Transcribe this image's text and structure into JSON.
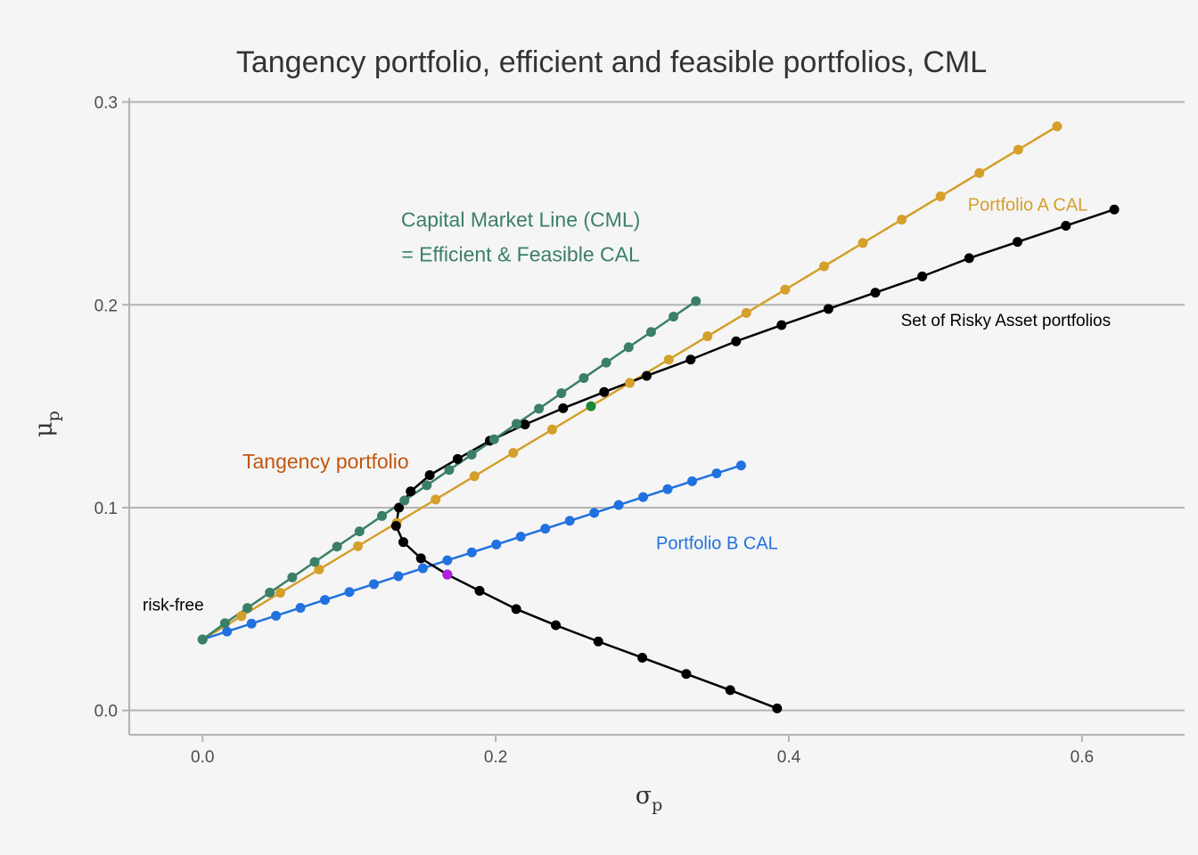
{
  "chart_data": {
    "type": "scatter",
    "title": "Tangency portfolio, efficient and feasible portfolios, CML",
    "xlabel": "σ",
    "xlabel_sub": "p",
    "ylabel": "μ",
    "ylabel_sub": "p",
    "xlim": [
      -0.05,
      0.67
    ],
    "ylim": [
      -0.012,
      0.302
    ],
    "x_ticks": [
      {
        "value": 0.0,
        "label": "0.0"
      },
      {
        "value": 0.2,
        "label": "0.2"
      },
      {
        "value": 0.4,
        "label": "0.4"
      },
      {
        "value": 0.6,
        "label": "0.6"
      }
    ],
    "y_ticks": [
      {
        "value": 0.0,
        "label": "0.0"
      },
      {
        "value": 0.1,
        "label": "0.1"
      },
      {
        "value": 0.2,
        "label": "0.2"
      },
      {
        "value": 0.3,
        "label": "0.3"
      }
    ],
    "grid": "horizontal",
    "series": [
      {
        "key": "portfolio_a_cal",
        "color": "#d4a02a",
        "points": [
          [
            0.0,
            0.035
          ],
          [
            0.0265,
            0.0465
          ],
          [
            0.053,
            0.058
          ],
          [
            0.0795,
            0.0695
          ],
          [
            0.106,
            0.081
          ],
          [
            0.1325,
            0.0925
          ],
          [
            0.159,
            0.104
          ],
          [
            0.1855,
            0.1155
          ],
          [
            0.212,
            0.127
          ],
          [
            0.2385,
            0.1385
          ],
          [
            0.265,
            0.15
          ],
          [
            0.2915,
            0.1615
          ],
          [
            0.318,
            0.173
          ],
          [
            0.3445,
            0.1845
          ],
          [
            0.371,
            0.196
          ],
          [
            0.3975,
            0.2075
          ],
          [
            0.424,
            0.219
          ],
          [
            0.4505,
            0.2305
          ],
          [
            0.477,
            0.242
          ],
          [
            0.5035,
            0.2535
          ],
          [
            0.53,
            0.265
          ],
          [
            0.5565,
            0.2765
          ],
          [
            0.583,
            0.288
          ]
        ]
      },
      {
        "key": "portfolio_b_cal",
        "color": "#2171e0",
        "points": [
          [
            0.0,
            0.035
          ],
          [
            0.0167,
            0.0389
          ],
          [
            0.0334,
            0.0428
          ],
          [
            0.0501,
            0.0467
          ],
          [
            0.0668,
            0.0506
          ],
          [
            0.0835,
            0.0545
          ],
          [
            0.1002,
            0.0584
          ],
          [
            0.1169,
            0.0623
          ],
          [
            0.1336,
            0.0662
          ],
          [
            0.1503,
            0.0701
          ],
          [
            0.167,
            0.074
          ],
          [
            0.1837,
            0.0779
          ],
          [
            0.2004,
            0.0818
          ],
          [
            0.2171,
            0.0857
          ],
          [
            0.2338,
            0.0896
          ],
          [
            0.2505,
            0.0935
          ],
          [
            0.2672,
            0.0974
          ],
          [
            0.2839,
            0.1013
          ],
          [
            0.3006,
            0.1052
          ],
          [
            0.3173,
            0.1091
          ],
          [
            0.334,
            0.113
          ],
          [
            0.3507,
            0.1169
          ],
          [
            0.3674,
            0.1208
          ]
        ]
      },
      {
        "key": "risky_asset_portfolios",
        "color": "#000000",
        "points": [
          [
            0.392,
            0.001
          ],
          [
            0.36,
            0.01
          ],
          [
            0.33,
            0.018
          ],
          [
            0.3,
            0.026
          ],
          [
            0.27,
            0.034
          ],
          [
            0.241,
            0.042
          ],
          [
            0.214,
            0.05
          ],
          [
            0.189,
            0.059
          ],
          [
            0.167,
            0.067
          ],
          [
            0.149,
            0.075
          ],
          [
            0.137,
            0.083
          ],
          [
            0.132,
            0.091
          ],
          [
            0.134,
            0.1
          ],
          [
            0.142,
            0.108
          ],
          [
            0.155,
            0.116
          ],
          [
            0.174,
            0.124
          ],
          [
            0.196,
            0.133
          ],
          [
            0.22,
            0.141
          ],
          [
            0.246,
            0.149
          ],
          [
            0.274,
            0.157
          ],
          [
            0.303,
            0.165
          ],
          [
            0.333,
            0.173
          ],
          [
            0.364,
            0.182
          ],
          [
            0.395,
            0.19
          ],
          [
            0.427,
            0.198
          ],
          [
            0.459,
            0.206
          ],
          [
            0.491,
            0.214
          ],
          [
            0.523,
            0.223
          ],
          [
            0.556,
            0.231
          ],
          [
            0.589,
            0.239
          ],
          [
            0.622,
            0.247
          ]
        ]
      },
      {
        "key": "capital_market_line",
        "color": "#3b7f68",
        "points": [
          [
            0.0,
            0.035
          ],
          [
            0.0153,
            0.043
          ],
          [
            0.0306,
            0.0505
          ],
          [
            0.0459,
            0.0581
          ],
          [
            0.0612,
            0.0656
          ],
          [
            0.0765,
            0.0732
          ],
          [
            0.0918,
            0.0808
          ],
          [
            0.1071,
            0.0883
          ],
          [
            0.1224,
            0.0959
          ],
          [
            0.1377,
            0.1035
          ],
          [
            0.153,
            0.111
          ],
          [
            0.1683,
            0.1186
          ],
          [
            0.1836,
            0.1261
          ],
          [
            0.1989,
            0.1337
          ],
          [
            0.2142,
            0.1413
          ],
          [
            0.2295,
            0.1488
          ],
          [
            0.2448,
            0.1564
          ],
          [
            0.2601,
            0.1639
          ],
          [
            0.2754,
            0.1715
          ],
          [
            0.2907,
            0.1791
          ],
          [
            0.306,
            0.1866
          ],
          [
            0.3213,
            0.1942
          ],
          [
            0.3366,
            0.2018
          ]
        ]
      }
    ],
    "highlights": [
      {
        "key": "tangency_point",
        "color": "#1a8a3a",
        "x": 0.265,
        "y": 0.15
      },
      {
        "key": "portfolio_b_point",
        "color": "#b01fe0",
        "x": 0.167,
        "y": 0.067
      }
    ],
    "annotations": [
      {
        "key": "cml_line1",
        "text": "Capital Market Line (CML)",
        "x": 0.217,
        "y": 0.2385,
        "color": "#3b7f68",
        "size": 23
      },
      {
        "key": "cml_line2",
        "text": " = Efficient & Feasible CAL",
        "x": 0.217,
        "y": 0.2215,
        "color": "#3b7f68",
        "size": 23
      },
      {
        "key": "tangency",
        "text": "Tangency portfolio",
        "x": 0.084,
        "y": 0.1194,
        "color": "#c2560f",
        "size": 23
      },
      {
        "key": "portfolio_a",
        "text": "Portfolio A CAL",
        "x": 0.563,
        "y": 0.2465,
        "color": "#d4a02a",
        "size": 20
      },
      {
        "key": "portfolio_b",
        "text": "Portfolio B CAL",
        "x": 0.351,
        "y": 0.0795,
        "color": "#2171e0",
        "size": 20
      },
      {
        "key": "risky_set",
        "text": "Set of Risky Asset portfolios",
        "x": 0.548,
        "y": 0.1895,
        "color": "#000000",
        "size": 19
      },
      {
        "key": "risk_free",
        "text": "risk-free",
        "x": -0.02,
        "y": 0.0493,
        "color": "#000000",
        "size": 19
      }
    ]
  }
}
